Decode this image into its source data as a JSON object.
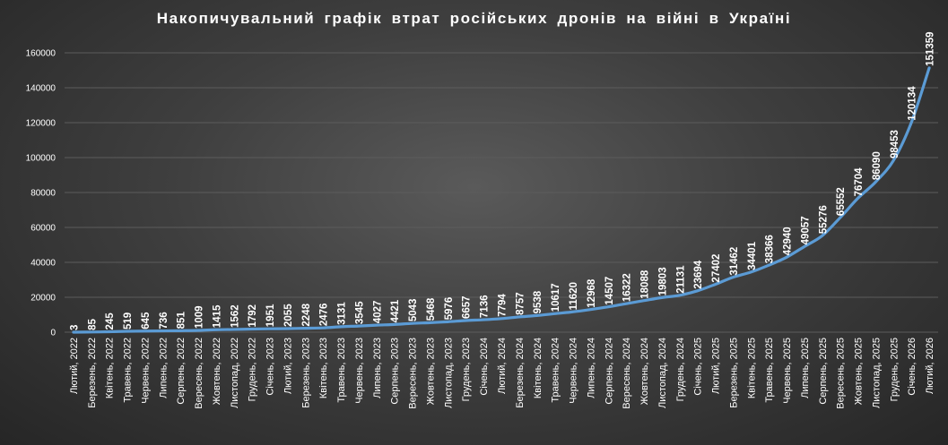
{
  "chart_data": {
    "type": "line",
    "title": "Накопичувальний графік втрат російських дронів на війні в Україні",
    "xlabel": "",
    "ylabel": "",
    "ylim": [
      0,
      160000
    ],
    "yticks": [
      "0",
      "20000",
      "40000",
      "60000",
      "80000",
      "100000",
      "120000",
      "140000",
      "160000"
    ],
    "grid": true,
    "line_color": "#5b9bd5",
    "categories": [
      "Лютий, 2022",
      "Березень, 2022",
      "Квітень, 2022",
      "Травень, 2022",
      "Червень, 2022",
      "Липень, 2022",
      "Серпень, 2022",
      "Вересень, 2022",
      "Жовтень, 2022",
      "Листопад, 2022",
      "Грудень, 2022",
      "Січень, 2023",
      "Лютий, 2023",
      "Березень, 2023",
      "Квітень, 2023",
      "Травень, 2023",
      "Червень, 2023",
      "Липень, 2023",
      "Серпень, 2023",
      "Вересень, 2023",
      "Жовтень, 2023",
      "Листопад, 2023",
      "Грудень, 2023",
      "Січень, 2024",
      "Лютий, 2024",
      "Березень, 2024",
      "Квітень, 2024",
      "Травень, 2024",
      "Червень, 2024",
      "Липень, 2024",
      "Серпень, 2024",
      "Вересень, 2024",
      "Жовтень, 2024",
      "Листопад, 2024",
      "Грудень, 2024",
      "Січень, 2025",
      "Лютий, 2025",
      "Березень, 2025",
      "Квітень, 2025",
      "Травень, 2025",
      "Червень, 2025",
      "Липень, 2025",
      "Серпень, 2025",
      "Вересень, 2025",
      "Жовтень, 2025",
      "Листопад, 2025",
      "Грудень, 2025",
      "Січень, 2026",
      "Лютий, 2026"
    ],
    "series": [
      {
        "values": [
          3,
          85,
          245,
          519,
          645,
          736,
          851,
          1009,
          1415,
          1562,
          1792,
          1951,
          2055,
          2248,
          2476,
          3131,
          3545,
          4027,
          4421,
          5043,
          5468,
          5976,
          6657,
          7136,
          7794,
          8757,
          9538,
          10617,
          11620,
          12968,
          14507,
          16322,
          18088,
          19803,
          21131,
          23694,
          27402,
          31462,
          34401,
          38366,
          42940,
          49057,
          55276,
          65552,
          76704,
          86090,
          98453,
          120134,
          151359
        ]
      }
    ]
  }
}
